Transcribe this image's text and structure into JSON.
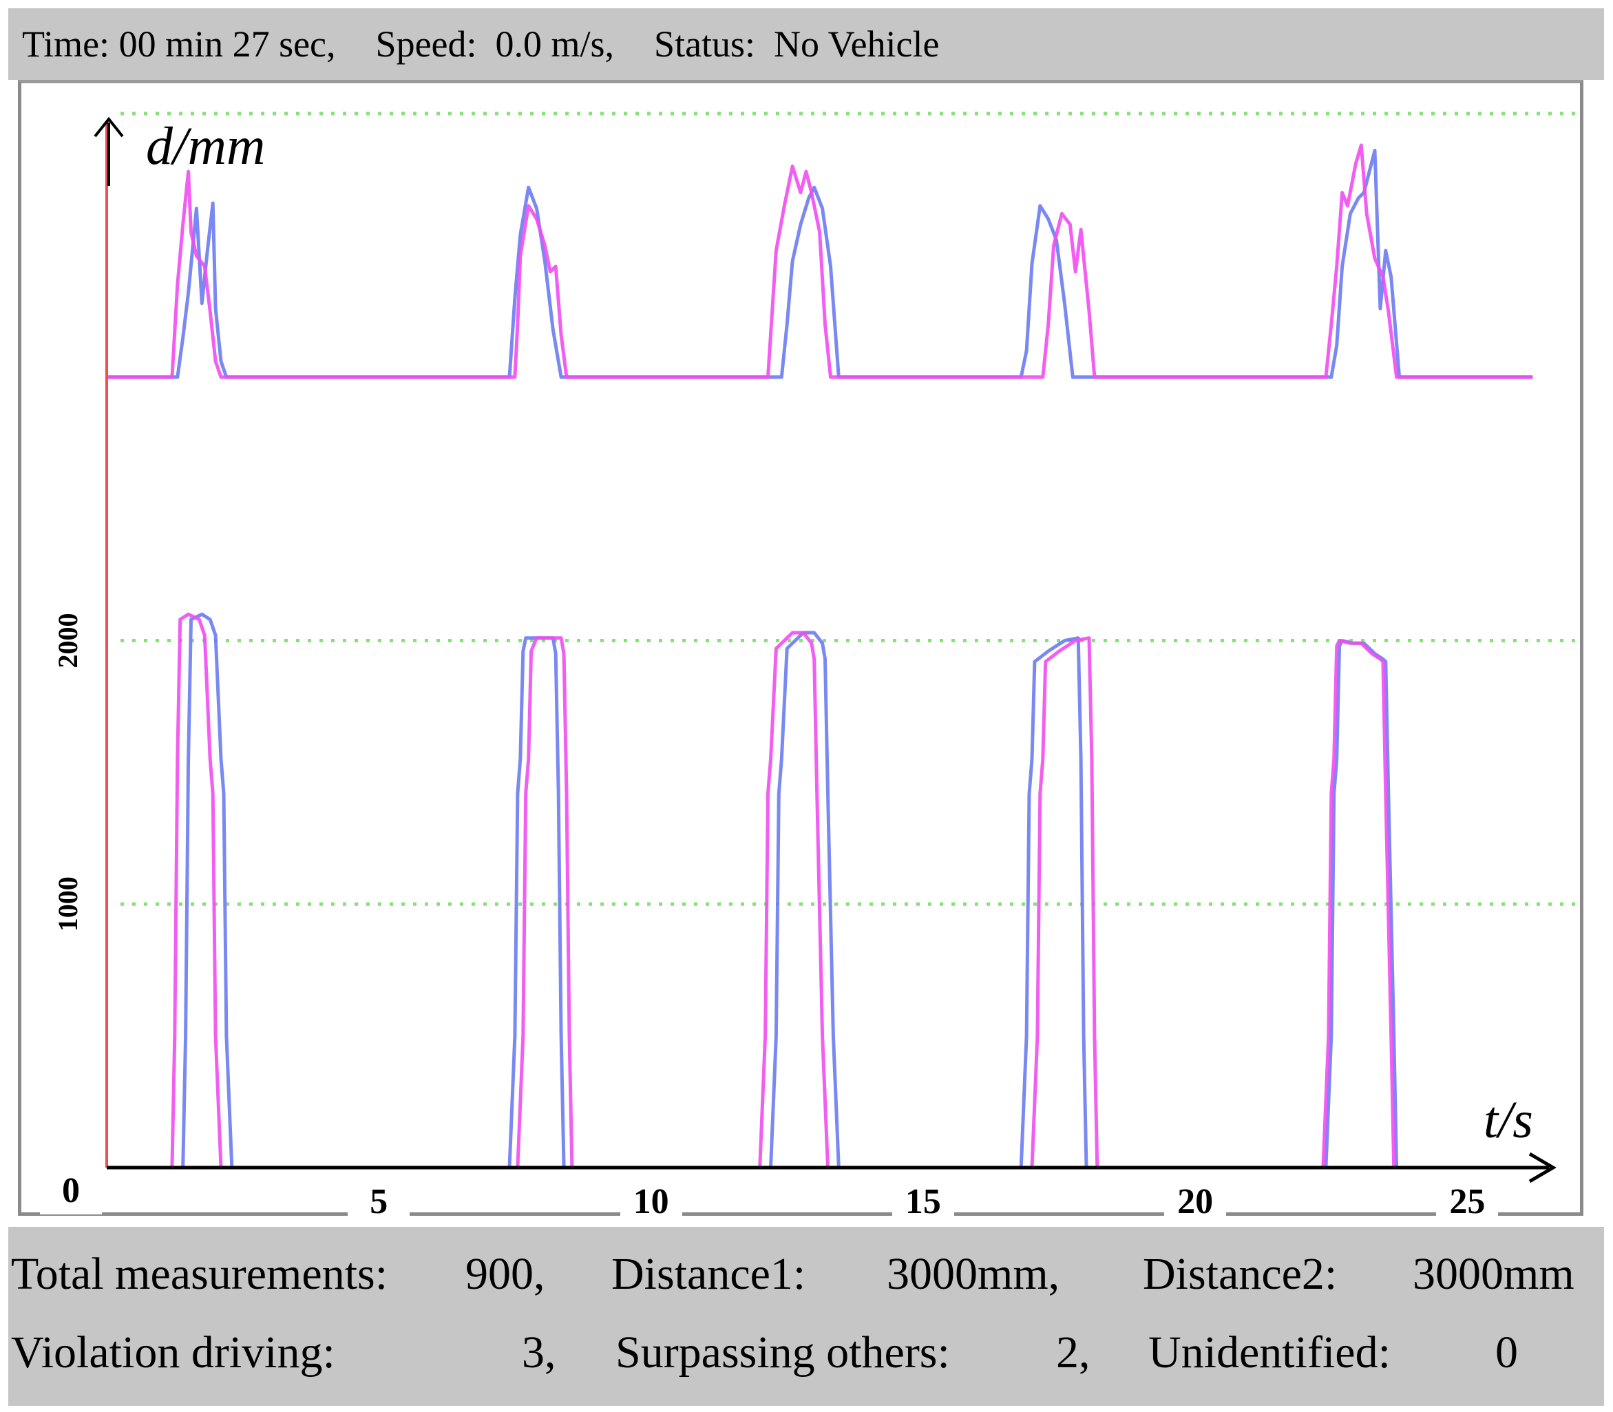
{
  "status_bar": {
    "time_text": "Time: 00 min 27 sec,",
    "speed_text": "Speed:  0.0 m/s,",
    "status_text": "Status:  No Vehicle"
  },
  "stats": {
    "total_label": "Total measurements:",
    "total_value": "900,",
    "distance1_label": "Distance1:",
    "distance1_value": "3000mm,",
    "distance2_label": "Distance2:",
    "distance2_value": "3000mm",
    "violation_label": "Violation driving:",
    "violation_value": "3,",
    "surpassing_label": "Surpassing others:",
    "surpassing_value": "2,",
    "unidentified_label": "Unidentified:",
    "unidentified_value": "0"
  },
  "colors": {
    "series_blue": "#6a7cf0",
    "series_magenta": "#f04cf0",
    "gridline": "#88e07a",
    "y_axis": "#f05050",
    "panel": "#c6c6c6"
  },
  "chart_data": {
    "type": "line",
    "xlabel": "t/s",
    "ylabel": "d/mm",
    "xlim": [
      0,
      26.5
    ],
    "ylim": [
      0,
      4000
    ],
    "x_ticks": [
      "0",
      "5",
      "10",
      "15",
      "20",
      "25"
    ],
    "x_tick_values": [
      0,
      5,
      10,
      15,
      20,
      25
    ],
    "y_ticks": [
      "1000",
      "2000"
    ],
    "y_tick_values": [
      1000,
      2000
    ],
    "gridlines_y": [
      1000,
      2000,
      4000
    ],
    "grid": "horizontal dotted",
    "legend": "none",
    "series": [
      {
        "color_key": "series_blue",
        "x": [
          0,
          1.4,
          1.45,
          1.5,
          1.55,
          1.75,
          1.9,
          2.0,
          2.1,
          2.15,
          2.2,
          2.3,
          2.35,
          2.4,
          7.4,
          7.5,
          7.55,
          7.6,
          7.65,
          7.7,
          7.9,
          8.2,
          8.25,
          8.3,
          8.35,
          8.4,
          12.2,
          12.3,
          12.35,
          12.4,
          12.5,
          12.8,
          13.0,
          13.15,
          13.2,
          13.25,
          13.35,
          13.45,
          16.8,
          16.9,
          16.95,
          17.0,
          17.05,
          17.3,
          17.6,
          17.85,
          17.9,
          17.95,
          18.0,
          22.4,
          22.5,
          22.55,
          22.6,
          22.65,
          22.7,
          22.9,
          23.1,
          23.3,
          23.45,
          23.5,
          23.55,
          23.65,
          23.7,
          26.2
        ],
        "y": [
          0,
          0,
          500,
          1550,
          2080,
          2100,
          2080,
          2020,
          1550,
          1420,
          500,
          0,
          0,
          0,
          0,
          500,
          1420,
          1550,
          1960,
          2010,
          2010,
          2010,
          1950,
          1420,
          500,
          0,
          0,
          500,
          1420,
          1550,
          1970,
          2030,
          2030,
          1990,
          1930,
          1420,
          500,
          0,
          0,
          500,
          1420,
          1550,
          1920,
          1960,
          2000,
          2010,
          1550,
          500,
          0,
          0,
          500,
          1420,
          1550,
          1980,
          2000,
          1990,
          1990,
          1950,
          1930,
          1920,
          1420,
          500,
          0,
          0
        ]
      },
      {
        "color_key": "series_magenta",
        "x": [
          0,
          1.2,
          1.25,
          1.3,
          1.35,
          1.5,
          1.7,
          1.8,
          1.9,
          1.95,
          2.0,
          2.1,
          2.15,
          2.2,
          7.55,
          7.65,
          7.7,
          7.75,
          7.8,
          7.9,
          8.1,
          8.35,
          8.4,
          8.45,
          8.5,
          8.55,
          12.0,
          12.1,
          12.15,
          12.2,
          12.3,
          12.6,
          12.8,
          12.95,
          13.0,
          13.05,
          13.15,
          13.25,
          17.0,
          17.1,
          17.15,
          17.2,
          17.25,
          17.5,
          17.8,
          18.05,
          18.1,
          18.15,
          18.2,
          22.35,
          22.45,
          22.5,
          22.55,
          22.6,
          22.65,
          22.85,
          23.05,
          23.25,
          23.4,
          23.45,
          23.5,
          23.6,
          23.65,
          26.2
        ],
        "y": [
          0,
          0,
          500,
          1550,
          2080,
          2100,
          2080,
          2020,
          1550,
          1420,
          500,
          0,
          0,
          0,
          0,
          500,
          1420,
          1550,
          1960,
          2010,
          2010,
          2010,
          1950,
          1420,
          500,
          0,
          0,
          500,
          1420,
          1550,
          1970,
          2030,
          2030,
          1990,
          1930,
          1420,
          500,
          0,
          0,
          500,
          1420,
          1550,
          1920,
          1960,
          2000,
          2010,
          1550,
          500,
          0,
          0,
          500,
          1420,
          1550,
          1980,
          2000,
          1990,
          1990,
          1950,
          1930,
          1920,
          1420,
          500,
          0,
          0
        ]
      },
      {
        "color_key": "series_blue",
        "x": [
          0,
          1.3,
          1.4,
          1.5,
          1.65,
          1.75,
          1.85,
          1.95,
          2.0,
          2.1,
          2.2,
          7.3,
          7.4,
          7.5,
          7.6,
          7.75,
          7.9,
          8.05,
          8.2,
          8.35,
          8.45,
          12.4,
          12.5,
          12.6,
          12.75,
          12.9,
          13.0,
          13.15,
          13.3,
          13.45,
          16.8,
          16.9,
          17.0,
          17.15,
          17.3,
          17.45,
          17.6,
          17.75,
          17.9,
          22.5,
          22.6,
          22.7,
          22.85,
          23.0,
          23.1,
          23.2,
          23.3,
          23.4,
          23.5,
          23.6,
          23.75,
          26.2
        ],
        "y": [
          3000,
          3000,
          3150,
          3320,
          3640,
          3280,
          3480,
          3660,
          3260,
          3060,
          3000,
          3000,
          3000,
          3300,
          3540,
          3720,
          3640,
          3440,
          3180,
          3000,
          3000,
          3000,
          3200,
          3440,
          3580,
          3680,
          3720,
          3640,
          3420,
          3000,
          3000,
          3100,
          3430,
          3650,
          3600,
          3520,
          3280,
          3000,
          3000,
          3000,
          3120,
          3420,
          3620,
          3680,
          3700,
          3780,
          3860,
          3260,
          3480,
          3380,
          3000,
          3000
        ]
      },
      {
        "color_key": "series_magenta",
        "x": [
          0,
          1.2,
          1.3,
          1.4,
          1.5,
          1.55,
          1.65,
          1.8,
          1.9,
          2.0,
          2.1,
          7.5,
          7.55,
          7.6,
          7.75,
          7.9,
          8.05,
          8.15,
          8.25,
          8.35,
          8.45,
          8.55,
          12.15,
          12.25,
          12.3,
          12.45,
          12.6,
          12.75,
          12.85,
          12.95,
          13.1,
          13.2,
          13.3,
          17.2,
          17.3,
          17.4,
          17.55,
          17.7,
          17.8,
          17.9,
          18.05,
          18.15,
          22.4,
          22.5,
          22.6,
          22.7,
          22.8,
          22.95,
          23.05,
          23.15,
          23.3,
          23.45,
          23.55,
          23.7,
          26.2
        ],
        "y": [
          3000,
          3000,
          3350,
          3580,
          3780,
          3550,
          3460,
          3420,
          3250,
          3060,
          3000,
          3000,
          3200,
          3460,
          3650,
          3600,
          3500,
          3400,
          3420,
          3160,
          3000,
          3000,
          3000,
          3320,
          3480,
          3650,
          3800,
          3700,
          3780,
          3700,
          3550,
          3200,
          3000,
          3000,
          3200,
          3500,
          3620,
          3580,
          3400,
          3560,
          3250,
          3000,
          3000,
          3200,
          3420,
          3700,
          3650,
          3810,
          3880,
          3620,
          3450,
          3380,
          3250,
          3000,
          3000
        ]
      }
    ]
  }
}
